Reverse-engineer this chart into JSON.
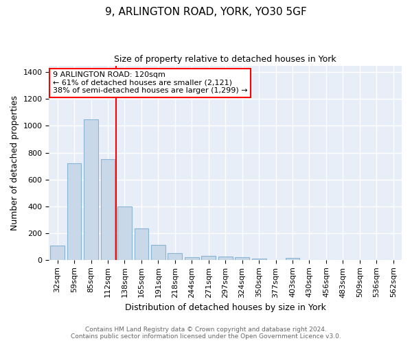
{
  "title1": "9, ARLINGTON ROAD, YORK, YO30 5GF",
  "title2": "Size of property relative to detached houses in York",
  "xlabel": "Distribution of detached houses by size in York",
  "ylabel": "Number of detached properties",
  "bar_labels": [
    "32sqm",
    "59sqm",
    "85sqm",
    "112sqm",
    "138sqm",
    "165sqm",
    "191sqm",
    "218sqm",
    "244sqm",
    "271sqm",
    "297sqm",
    "324sqm",
    "350sqm",
    "377sqm",
    "403sqm",
    "430sqm",
    "456sqm",
    "483sqm",
    "509sqm",
    "536sqm",
    "562sqm"
  ],
  "bar_values": [
    105,
    720,
    1050,
    750,
    400,
    235,
    110,
    50,
    20,
    28,
    25,
    18,
    10,
    0,
    15,
    0,
    0,
    0,
    0,
    0,
    0
  ],
  "bar_color": "#c8d8e8",
  "bar_edgecolor": "#8ab4d4",
  "red_line_x": 3.5,
  "annotation_text": "9 ARLINGTON ROAD: 120sqm\n← 61% of detached houses are smaller (2,121)\n38% of semi-detached houses are larger (1,299) →",
  "annotation_box_color": "white",
  "annotation_box_edgecolor": "red",
  "ylim": [
    0,
    1450
  ],
  "yticks": [
    0,
    200,
    400,
    600,
    800,
    1000,
    1200,
    1400
  ],
  "footer": "Contains HM Land Registry data © Crown copyright and database right 2024.\nContains public sector information licensed under the Open Government Licence v3.0.",
  "background_color": "#e8eef8",
  "grid_color": "white",
  "title1_fontsize": 11,
  "title2_fontsize": 9,
  "ylabel_fontsize": 9,
  "xlabel_fontsize": 9,
  "tick_fontsize": 8,
  "footer_fontsize": 6.5,
  "footer_color": "#666666"
}
